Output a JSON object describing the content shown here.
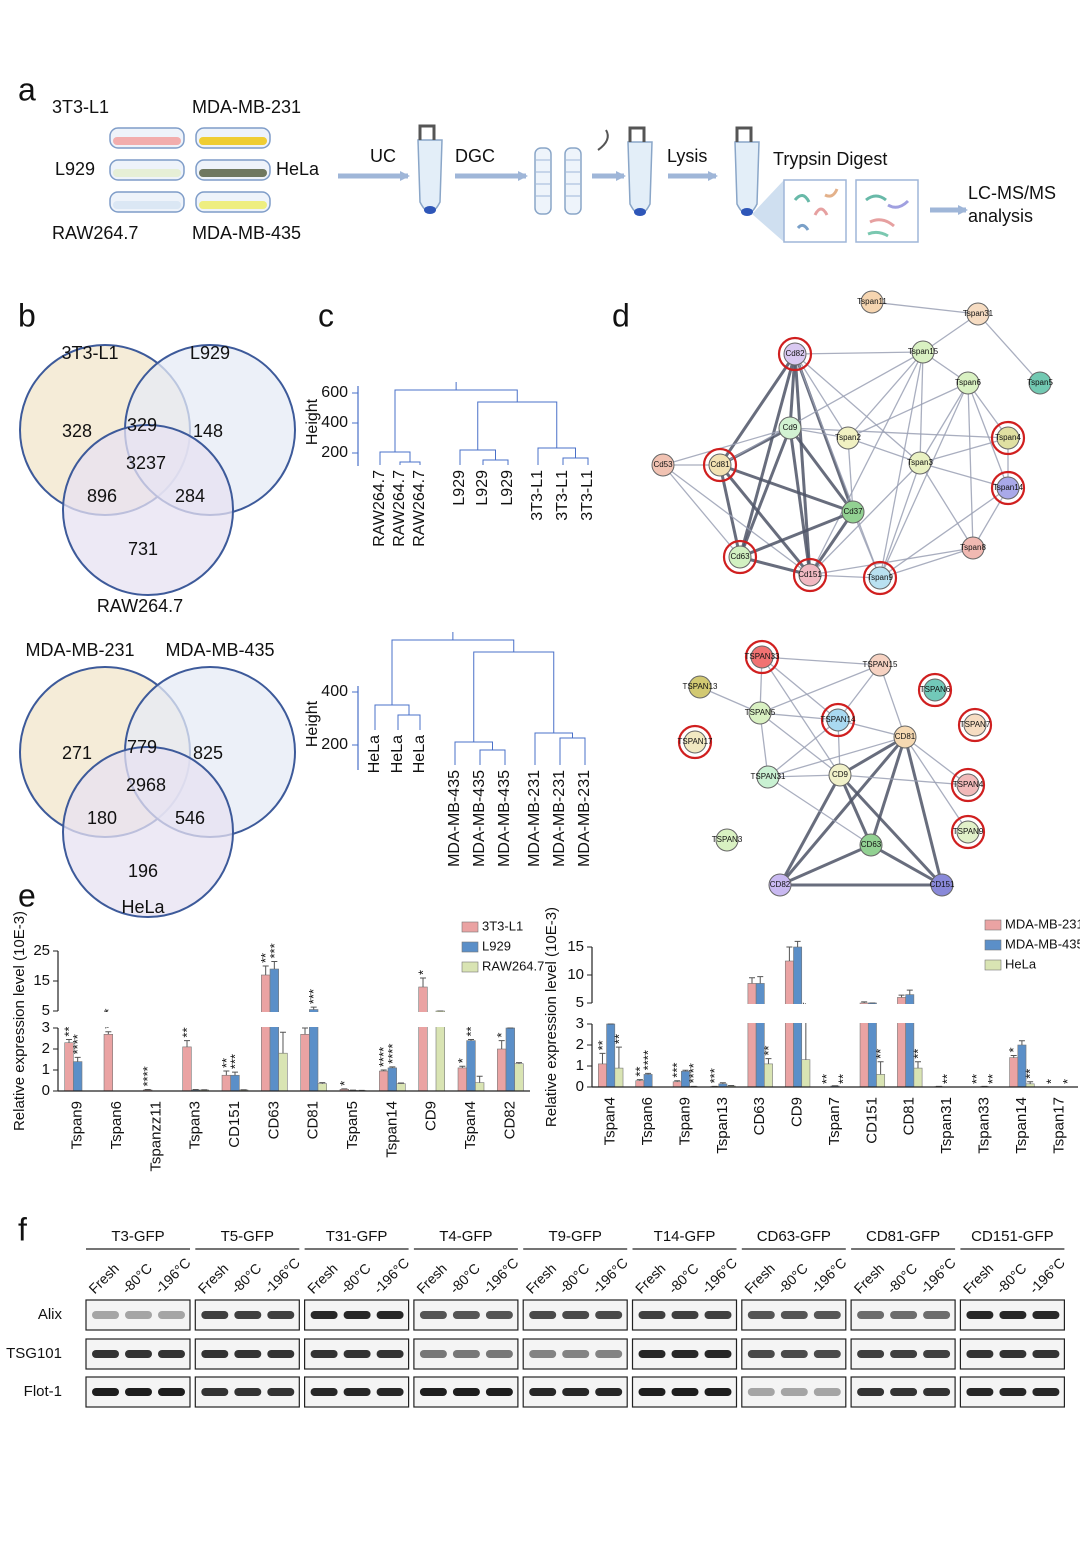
{
  "panel_labels": [
    "a",
    "b",
    "c",
    "d",
    "e",
    "f"
  ],
  "workflow": {
    "cell_lines": [
      "3T3-L1",
      "MDA-MB-231",
      "L929",
      "HeLa",
      "RAW264.7",
      "MDA-MB-435"
    ],
    "steps": [
      "UC",
      "DGC",
      "Lysis",
      "Trypsin Digest"
    ],
    "result": [
      "LC-MS/MS",
      "analysis"
    ]
  },
  "venn": [
    {
      "sets": [
        "3T3-L1",
        "L929",
        "RAW264.7"
      ],
      "colors": [
        "#f1e6cb",
        "#e5ebf6",
        "#e7e1f1"
      ],
      "regions": {
        "A": 328,
        "AB": 329,
        "B": 148,
        "ABC": 3237,
        "AC": 896,
        "BC": 284,
        "C": 731
      }
    },
    {
      "sets": [
        "MDA-MB-231",
        "MDA-MB-435",
        "HeLa"
      ],
      "colors": [
        "#f1e6cb",
        "#e5ebf6",
        "#e7e1f1"
      ],
      "regions": {
        "A": 271,
        "AB": 779,
        "B": 825,
        "ABC": 2968,
        "AC": 180,
        "BC": 546,
        "C": 196
      }
    }
  ],
  "dendrograms": [
    {
      "ylabel": "Height",
      "yticks": [
        200,
        400,
        600
      ],
      "leaves": [
        {
          "label": "RAW264.7",
          "color": "#f2a3a3"
        },
        {
          "label": "RAW264.7",
          "color": "#f2a3a3"
        },
        {
          "label": "RAW264.7",
          "color": "#f2a3a3"
        },
        {
          "label": "L929",
          "color": "#6fa7d2"
        },
        {
          "label": "L929",
          "color": "#6fa7d2"
        },
        {
          "label": "L929",
          "color": "#6fa7d2"
        },
        {
          "label": "3T3-L1",
          "color": "#f4c178"
        },
        {
          "label": "3T3-L1",
          "color": "#f4c178"
        },
        {
          "label": "3T3-L1",
          "color": "#f4c178"
        }
      ]
    },
    {
      "ylabel": "Height",
      "yticks": [
        200,
        400
      ],
      "leaves": [
        {
          "label": "HeLa",
          "color": "#f2a3a3"
        },
        {
          "label": "HeLa",
          "color": "#f2a3a3"
        },
        {
          "label": "HeLa",
          "color": "#f2a3a3"
        },
        {
          "label": "MDA-MB-435",
          "color": "#6fa7d2"
        },
        {
          "label": "MDA-MB-435",
          "color": "#6fa7d2"
        },
        {
          "label": "MDA-MB-435",
          "color": "#6fa7d2"
        },
        {
          "label": "MDA-MB-231",
          "color": "#f4c178"
        },
        {
          "label": "MDA-MB-231",
          "color": "#f4c178"
        },
        {
          "label": "MDA-MB-231",
          "color": "#f4c178"
        }
      ]
    }
  ],
  "networks": [
    {
      "nodes": [
        {
          "label": "Tspan11",
          "color": "#f6d5b0",
          "highlighted": false
        },
        {
          "label": "Tspan31",
          "color": "#f6dcc2",
          "highlighted": false
        },
        {
          "label": "Cd82",
          "color": "#d9c9f1",
          "highlighted": true
        },
        {
          "label": "Tspan15",
          "color": "#d9f1c2",
          "highlighted": false
        },
        {
          "label": "Tspan6",
          "color": "#d9f1c2",
          "highlighted": false
        },
        {
          "label": "Tspan5",
          "color": "#72c9b2",
          "highlighted": false
        },
        {
          "label": "Cd9",
          "color": "#d2f2d2",
          "highlighted": false
        },
        {
          "label": "Tspan2",
          "color": "#f1f1c2",
          "highlighted": false
        },
        {
          "label": "Tspan4",
          "color": "#e0e0a2",
          "highlighted": true
        },
        {
          "label": "Cd53",
          "color": "#f1c2b2",
          "highlighted": false
        },
        {
          "label": "Cd81",
          "color": "#f2e1b2",
          "highlighted": true
        },
        {
          "label": "Tspan3",
          "color": "#e9f1c2",
          "highlighted": false
        },
        {
          "label": "Tspan14",
          "color": "#a9a9e9",
          "highlighted": true
        },
        {
          "label": "Cd37",
          "color": "#92d192",
          "highlighted": false
        },
        {
          "label": "Tspan8",
          "color": "#f1b9b2",
          "highlighted": false
        },
        {
          "label": "Cd63",
          "color": "#d2f1c2",
          "highlighted": true
        },
        {
          "label": "Cd151",
          "color": "#f1b9c2",
          "highlighted": true
        },
        {
          "label": "Tspan9",
          "color": "#b9e1f1",
          "highlighted": true
        }
      ]
    },
    {
      "nodes": [
        {
          "label": "TSPAN33",
          "color": "#f17272",
          "highlighted": true
        },
        {
          "label": "TSPAN15",
          "color": "#f6d2c2",
          "highlighted": false
        },
        {
          "label": "TSPAN13",
          "color": "#d2c972",
          "highlighted": false
        },
        {
          "label": "TSPAN6",
          "color": "#72c9b9",
          "highlighted": true
        },
        {
          "label": "TSPAN5",
          "color": "#d9f1c2",
          "highlighted": false
        },
        {
          "label": "TSPAN14",
          "color": "#a9d9f1",
          "highlighted": true
        },
        {
          "label": "TSPAN7",
          "color": "#f6dcc2",
          "highlighted": true
        },
        {
          "label": "CD81",
          "color": "#f6d9b2",
          "highlighted": false
        },
        {
          "label": "TSPAN17",
          "color": "#f1e9c2",
          "highlighted": true
        },
        {
          "label": "TSPAN31",
          "color": "#c9f1d2",
          "highlighted": false
        },
        {
          "label": "CD9",
          "color": "#f1f1c9",
          "highlighted": false
        },
        {
          "label": "TSPAN4",
          "color": "#f1b9b9",
          "highlighted": true
        },
        {
          "label": "TSPAN3",
          "color": "#d9f1c2",
          "highlighted": false
        },
        {
          "label": "CD63",
          "color": "#92d192",
          "highlighted": false
        },
        {
          "label": "TSPAN9",
          "color": "#e1f1c9",
          "highlighted": true
        },
        {
          "label": "CD82",
          "color": "#c9b9f1",
          "highlighted": false
        },
        {
          "label": "CD151",
          "color": "#8989d9",
          "highlighted": false
        }
      ]
    }
  ],
  "chart_data": [
    {
      "type": "bar",
      "ylabel": "Relative expression level (10E-3)",
      "categories": [
        "Tspan9",
        "Tspan6",
        "Tspanzz11",
        "Tspan3",
        "CD151",
        "CD63",
        "CD81",
        "Tspan5",
        "Tspan14",
        "CD9",
        "Tspan4",
        "CD82"
      ],
      "ylim": [
        0,
        25
      ],
      "yticks": [
        0,
        1,
        2,
        3,
        5,
        15,
        25
      ],
      "axis_break": [
        3,
        5
      ],
      "series": [
        {
          "name": "3T3-L1",
          "color": "#eaa3a3",
          "values": [
            2.3,
            2.7,
            0.05,
            2.1,
            0.75,
            17,
            2.7,
            0.08,
            0.95,
            13,
            1.1,
            2.0
          ],
          "errors": [
            0.15,
            0.12,
            0.02,
            0.3,
            0.2,
            3,
            0.3,
            0.02,
            0.05,
            3,
            0.08,
            0.4
          ],
          "annotations": [
            "****",
            "****",
            "****",
            "****",
            "**",
            "**",
            "**",
            "*",
            "****",
            "*",
            "*",
            "*"
          ]
        },
        {
          "name": "L929",
          "color": "#5b8fc8",
          "values": [
            1.4,
            0,
            0,
            0.05,
            0.75,
            19,
            5.5,
            0.03,
            1.1,
            0,
            2.4,
            3
          ],
          "errors": [
            0.2,
            0,
            0,
            0.02,
            0.15,
            2.5,
            0.8,
            0.01,
            0.05,
            0,
            0.05,
            0
          ],
          "annotations": [
            "****",
            null,
            null,
            null,
            "***",
            "***",
            "***",
            null,
            "****",
            null,
            "***",
            "*"
          ]
        },
        {
          "name": "RAW264.7",
          "color": "#d9e4b3",
          "values": [
            0,
            0,
            0,
            0.05,
            0.05,
            1.8,
            0.35,
            0.02,
            0.35,
            5,
            0.4,
            1.3
          ],
          "errors": [
            0,
            0,
            0,
            0.01,
            0.01,
            1.0,
            0.05,
            0.01,
            0.03,
            0,
            0.3,
            0.05
          ],
          "annotations": [
            null,
            null,
            null,
            null,
            null,
            null,
            null,
            null,
            null,
            null,
            null,
            null
          ]
        }
      ],
      "legend": "top-right"
    },
    {
      "type": "bar",
      "ylabel": "Relative expression level (10E-3)",
      "categories": [
        "Tspan4",
        "Tspan6",
        "Tspan9",
        "Tspan13",
        "CD63",
        "CD9",
        "Tspan7",
        "CD151",
        "CD81",
        "Tspan31",
        "Tspan33",
        "Tspan14",
        "Tspan17"
      ],
      "ylim": [
        0,
        15
      ],
      "yticks": [
        0,
        1,
        2,
        3,
        5,
        10,
        15
      ],
      "axis_break": [
        3,
        5
      ],
      "series": [
        {
          "name": "MDA-MB-231",
          "color": "#eaa3a3",
          "values": [
            1.1,
            0.3,
            0.25,
            0.02,
            8.5,
            12.5,
            0,
            5,
            6,
            0.02,
            0,
            1.4,
            0
          ],
          "errors": [
            0.5,
            0.05,
            0.05,
            0.01,
            1,
            2.5,
            0,
            0.2,
            0.4,
            0.01,
            0,
            0.1,
            0
          ],
          "annotations": [
            "**",
            "**",
            "***",
            "***",
            null,
            null,
            "**",
            null,
            null,
            null,
            "**",
            "*",
            "*"
          ]
        },
        {
          "name": "MDA-MB-435",
          "color": "#5b8fc8",
          "values": [
            3,
            0.6,
            0.75,
            0.15,
            8.5,
            15,
            0.05,
            5,
            6.5,
            0,
            0.02,
            2.0,
            0
          ],
          "errors": [
            0,
            0.05,
            0.05,
            0.05,
            1.2,
            1,
            0.01,
            0,
            0.8,
            0,
            0.01,
            0.2,
            0
          ],
          "annotations": [
            null,
            "****",
            null,
            null,
            null,
            null,
            null,
            null,
            null,
            "**",
            null,
            null,
            null
          ]
        },
        {
          "name": "HeLa",
          "color": "#d9e4b3",
          "values": [
            0.9,
            0,
            0.02,
            0.05,
            1.1,
            1.3,
            0,
            0.6,
            0.9,
            0,
            0,
            0.15,
            0
          ],
          "errors": [
            1.0,
            0,
            0.01,
            0.02,
            0.25,
            2.5,
            0,
            0.6,
            0.3,
            0,
            0,
            0.1,
            0
          ],
          "annotations": [
            "**",
            null,
            "****",
            null,
            "**",
            "**",
            "**",
            "**",
            "**",
            null,
            "**",
            "**",
            "*"
          ]
        }
      ],
      "legend": "top-right"
    }
  ],
  "blots": {
    "groups": [
      "T3-GFP",
      "T5-GFP",
      "T31-GFP",
      "T4-GFP",
      "T9-GFP",
      "T14-GFP",
      "CD63-GFP",
      "CD81-GFP",
      "CD151-GFP"
    ],
    "conditions": [
      "Fresh",
      "-80°C",
      "-196°C"
    ],
    "rows": [
      "Alix",
      "TSG101",
      "Flot-1"
    ]
  }
}
